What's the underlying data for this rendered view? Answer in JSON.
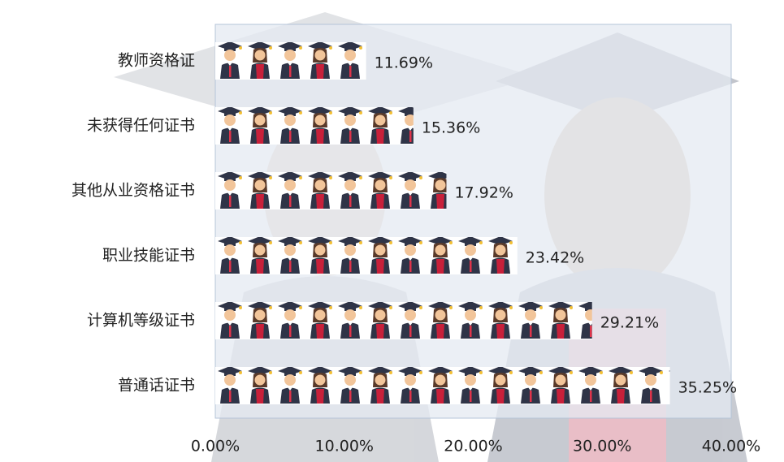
{
  "chart_data": {
    "type": "bar",
    "orientation": "horizontal",
    "categories": [
      "教师资格证",
      "未获得任何证书",
      "其他从业资格证书",
      "职业技能证书",
      "计算机等级证书",
      "普通话证书"
    ],
    "values": [
      11.69,
      15.36,
      17.92,
      23.42,
      29.21,
      35.25
    ],
    "value_labels": [
      "11.69%",
      "15.36%",
      "17.92%",
      "23.42%",
      "29.21%",
      "35.25%"
    ],
    "xlim": [
      0,
      40
    ],
    "xticks": [
      {
        "value": 0,
        "label": "0.00%"
      },
      {
        "value": 10,
        "label": "10.00%"
      },
      {
        "value": 20,
        "label": "20.00%"
      },
      {
        "value": 30,
        "label": "30.00%"
      },
      {
        "value": 40,
        "label": "40.00%"
      }
    ]
  }
}
